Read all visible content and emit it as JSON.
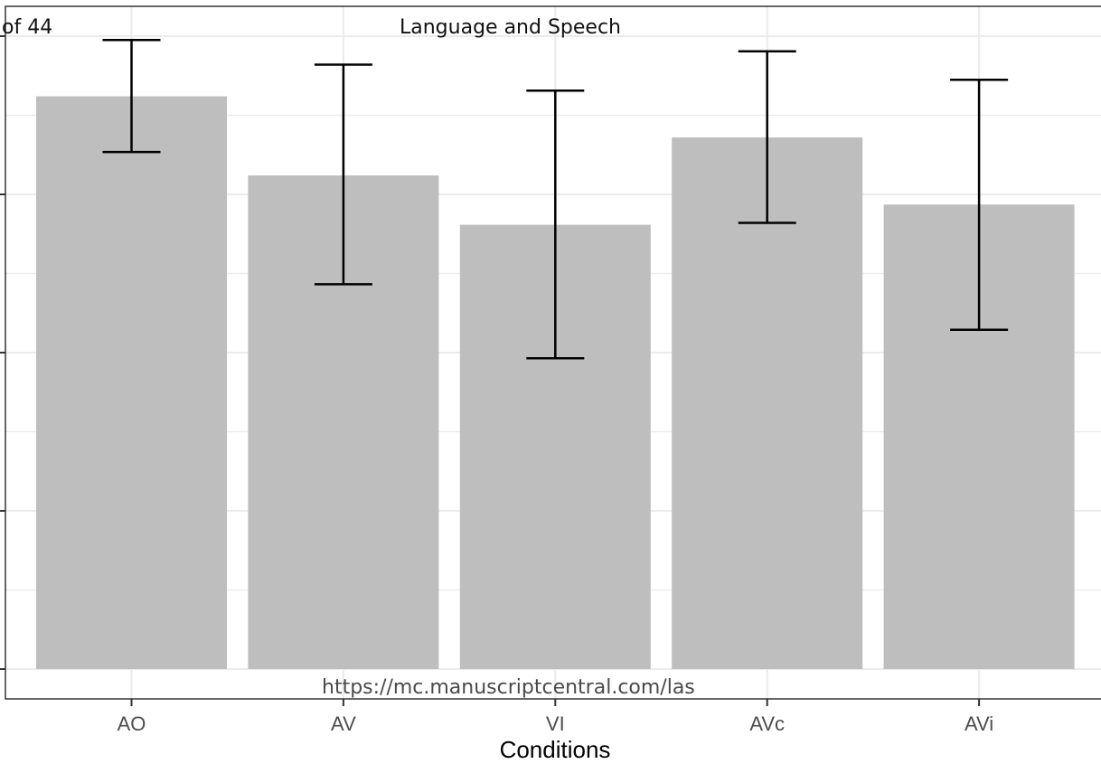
{
  "page": {
    "page_label": "of 44",
    "journal_title": "Language and Speech",
    "footer_url": "https://mc.manuscriptcentral.com/las"
  },
  "chart_data": {
    "type": "bar",
    "categories": [
      "AO",
      "AV",
      "VI",
      "AVc",
      "AVi"
    ],
    "values": [
      0.905,
      0.78,
      0.702,
      0.84,
      0.734
    ],
    "error_low": [
      0.817,
      0.608,
      0.491,
      0.705,
      0.536
    ],
    "error_high": [
      0.994,
      0.955,
      0.914,
      0.976,
      0.931
    ],
    "title": "",
    "xlabel": "Conditions",
    "ylabel": "",
    "ylim": [
      0,
      1.05
    ],
    "grid": true,
    "colors": {
      "bar": "#bebebe",
      "error_bar": "#000000",
      "grid": "#ebebeb",
      "panel_border": "#333333"
    }
  }
}
